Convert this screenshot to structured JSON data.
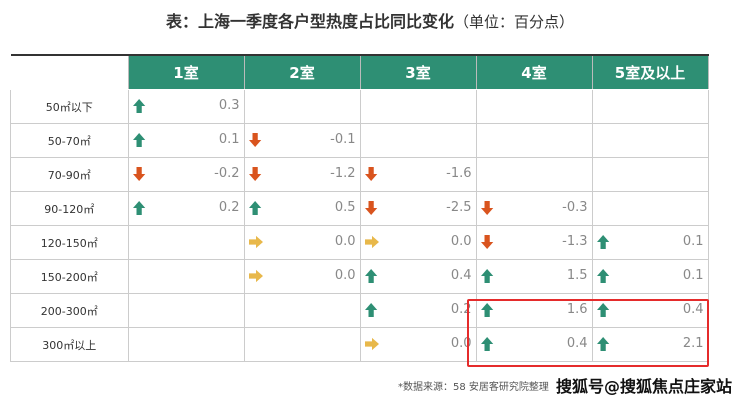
{
  "title": "表：上海一季度各户型热度占比同比变化",
  "unit": "（单位：百分点）",
  "columns": [
    "1室",
    "2室",
    "3室",
    "4室",
    "5室及以上"
  ],
  "rows": [
    {
      "label": "50㎡以下",
      "cells": [
        {
          "dir": "up",
          "value": "0.3"
        },
        null,
        null,
        null,
        null
      ]
    },
    {
      "label": "50-70㎡",
      "cells": [
        {
          "dir": "up",
          "value": "0.1"
        },
        {
          "dir": "down",
          "value": "-0.1"
        },
        null,
        null,
        null
      ]
    },
    {
      "label": "70-90㎡",
      "cells": [
        {
          "dir": "down",
          "value": "-0.2"
        },
        {
          "dir": "down",
          "value": "-1.2"
        },
        {
          "dir": "down",
          "value": "-1.6"
        },
        null,
        null
      ]
    },
    {
      "label": "90-120㎡",
      "cells": [
        {
          "dir": "up",
          "value": "0.2"
        },
        {
          "dir": "up",
          "value": "0.5"
        },
        {
          "dir": "down",
          "value": "-2.5"
        },
        {
          "dir": "down",
          "value": "-0.3"
        },
        null
      ]
    },
    {
      "label": "120-150㎡",
      "cells": [
        null,
        {
          "dir": "flat",
          "value": "0.0"
        },
        {
          "dir": "flat",
          "value": "0.0"
        },
        {
          "dir": "down",
          "value": "-1.3"
        },
        {
          "dir": "up",
          "value": "0.1"
        }
      ]
    },
    {
      "label": "150-200㎡",
      "cells": [
        null,
        {
          "dir": "flat",
          "value": "0.0"
        },
        {
          "dir": "up",
          "value": "0.4"
        },
        {
          "dir": "up",
          "value": "1.5"
        },
        {
          "dir": "up",
          "value": "0.1"
        }
      ]
    },
    {
      "label": "200-300㎡",
      "cells": [
        null,
        null,
        {
          "dir": "up",
          "value": "0.2"
        },
        {
          "dir": "up",
          "value": "1.6"
        },
        {
          "dir": "up",
          "value": "0.4"
        }
      ]
    },
    {
      "label": "300㎡以上",
      "cells": [
        null,
        null,
        {
          "dir": "flat",
          "value": "0.0"
        },
        {
          "dir": "up",
          "value": "0.4"
        },
        {
          "dir": "up",
          "value": "2.1"
        }
      ]
    }
  ],
  "colors": {
    "header": "#2e8f74",
    "up": "#2e8f74",
    "down": "#d9541e",
    "flat": "#e8b84a",
    "highlight": "#e52b2b"
  },
  "source": "*数据来源：58 安居客研究院整理",
  "watermark": "搜狐号@搜狐焦点庄家站"
}
